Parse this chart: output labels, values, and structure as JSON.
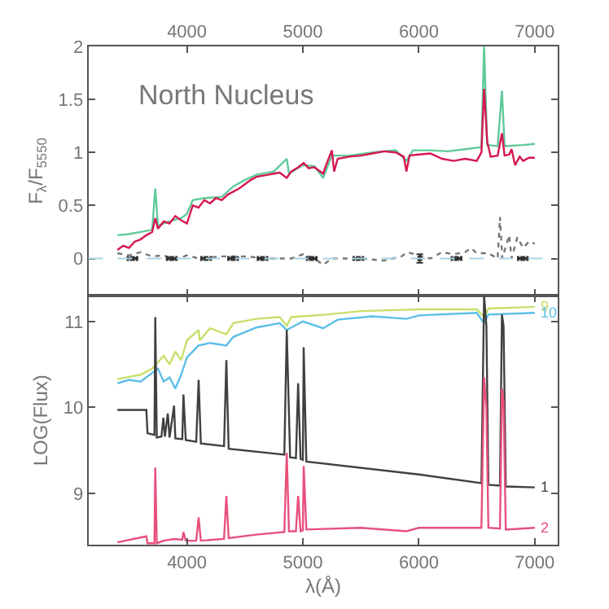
{
  "chart_data": [
    {
      "type": "line",
      "ylabel": "F$_{λ}$/F$_{5550}$",
      "annotations": [
        "North Nucleus"
      ],
      "xlim": [
        3150,
        7200
      ],
      "xticks": [
        4000,
        5000,
        6000,
        7000
      ],
      "ylim": [
        -0.35,
        2
      ],
      "yticks": [
        0,
        0.5,
        1,
        1.5,
        2
      ],
      "marker": "none",
      "ref_lines": [
        {
          "axis": "y",
          "value": 0,
          "color": "#a9d3e6",
          "line_style": "dashed"
        }
      ],
      "series": [
        {
          "color": "#5fc99a",
          "x": [
            3400,
            3500,
            3600,
            3700,
            3727,
            3750,
            3850,
            3950,
            4000,
            4050,
            4150,
            4300,
            4400,
            4500,
            4600,
            4750,
            4861,
            4880,
            5000,
            5100,
            5175,
            5250,
            5400,
            5600,
            5800,
            5893,
            5950,
            6100,
            6250,
            6400,
            6540,
            6563,
            6590,
            6680,
            6717,
            6740,
            6900,
            7000
          ],
          "values": [
            0.22,
            0.23,
            0.25,
            0.27,
            0.66,
            0.31,
            0.35,
            0.38,
            0.42,
            0.55,
            0.57,
            0.58,
            0.68,
            0.74,
            0.79,
            0.82,
            0.94,
            0.8,
            0.88,
            0.87,
            0.76,
            0.97,
            0.97,
            1.0,
            1.02,
            0.92,
            1.02,
            1.02,
            1.01,
            1.03,
            1.05,
            2.0,
            1.07,
            1.06,
            1.58,
            1.06,
            1.07,
            1.08
          ]
        },
        {
          "color": "#d6174f",
          "x": [
            3400,
            3450,
            3500,
            3550,
            3600,
            3650,
            3700,
            3727,
            3750,
            3800,
            3850,
            3900,
            3950,
            4000,
            4050,
            4100,
            4150,
            4200,
            4250,
            4300,
            4350,
            4400,
            4450,
            4500,
            4550,
            4600,
            4650,
            4700,
            4750,
            4800,
            4861,
            4900,
            4959,
            5007,
            5050,
            5100,
            5175,
            5200,
            5250,
            5270,
            5300,
            5400,
            5500,
            5600,
            5700,
            5800,
            5870,
            5893,
            5920,
            6000,
            6100,
            6200,
            6300,
            6400,
            6500,
            6540,
            6563,
            6590,
            6620,
            6680,
            6717,
            6740,
            6780,
            6800,
            6830,
            6870,
            6900,
            6950,
            7000
          ],
          "values": [
            0.08,
            0.12,
            0.1,
            0.16,
            0.18,
            0.22,
            0.25,
            0.38,
            0.28,
            0.35,
            0.33,
            0.4,
            0.36,
            0.33,
            0.5,
            0.48,
            0.55,
            0.52,
            0.57,
            0.55,
            0.6,
            0.63,
            0.66,
            0.7,
            0.74,
            0.77,
            0.78,
            0.79,
            0.8,
            0.81,
            0.76,
            0.82,
            0.86,
            0.9,
            0.85,
            0.86,
            0.8,
            0.88,
            1.02,
            0.82,
            0.94,
            0.96,
            0.97,
            0.99,
            1.01,
            1.0,
            0.96,
            0.82,
            0.97,
            0.98,
            0.99,
            0.94,
            0.92,
            0.94,
            0.92,
            1.0,
            1.6,
            1.1,
            0.96,
            0.97,
            1.18,
            0.97,
            0.98,
            1.03,
            0.88,
            0.96,
            0.92,
            0.95,
            0.95
          ]
        },
        {
          "color": "#777777",
          "line_style": "dotted",
          "x": [
            3400,
            3500,
            3600,
            3700,
            3800,
            3900,
            4000,
            4100,
            4300,
            4500,
            4700,
            4900,
            5000,
            5100,
            5175,
            5250,
            5500,
            5700,
            5850,
            5900,
            6000,
            6100,
            6200,
            6300,
            6400,
            6450,
            6500,
            6600,
            6680,
            6700,
            6720,
            6780,
            6800,
            6850,
            6900,
            6950,
            7000
          ],
          "values": [
            0.05,
            0.03,
            0.06,
            0.02,
            0.03,
            -0.01,
            0.03,
            0.0,
            0.02,
            0.02,
            0.0,
            0.0,
            0.04,
            0.0,
            -0.06,
            0.0,
            0.0,
            -0.02,
            0.02,
            0.06,
            0.03,
            0.0,
            0.06,
            0.04,
            0.06,
            0.1,
            0.05,
            0.05,
            0.0,
            0.39,
            0.0,
            0.22,
            0.0,
            0.2,
            0.1,
            0.16,
            0.14
          ]
        },
        {
          "type": "scatter",
          "marker": "square",
          "color": "#333333",
          "x": [
            3530,
            3869,
            4165,
            4398,
            4652,
            5076,
            5478,
            6008,
            6325,
            6897
          ],
          "values": [
            0,
            0,
            0,
            0,
            0,
            0,
            0,
            0,
            0,
            0
          ],
          "xerrors": [
            40,
            40,
            40,
            40,
            40,
            40,
            40,
            null,
            40,
            40
          ],
          "errors": [
            null,
            null,
            null,
            null,
            null,
            null,
            null,
            0.04,
            null,
            null
          ]
        }
      ]
    },
    {
      "type": "line",
      "xlabel": "λ(Å)",
      "ylabel": "LOG(Flux)",
      "xlim": [
        3150,
        7200
      ],
      "xticks": [
        4000,
        5000,
        6000,
        7000
      ],
      "ylim": [
        8.4,
        11.3
      ],
      "yticks": [
        9,
        10,
        11
      ],
      "legend": false,
      "marker": "none",
      "series": [
        {
          "name": "9",
          "color": "#c6e06a",
          "x": [
            3400,
            3600,
            3700,
            3800,
            3850,
            3900,
            3950,
            4000,
            4100,
            4110,
            4200,
            4340,
            4400,
            4600,
            4800,
            4861,
            4900,
            5200,
            5500,
            6000,
            6500,
            6563,
            6600,
            7000
          ],
          "values": [
            10.33,
            10.38,
            10.45,
            10.6,
            10.5,
            10.65,
            10.55,
            10.78,
            10.9,
            10.78,
            10.92,
            10.85,
            10.98,
            11.03,
            11.05,
            10.95,
            11.05,
            11.08,
            11.12,
            11.14,
            11.14,
            11.05,
            11.15,
            11.17
          ]
        },
        {
          "name": "10",
          "color": "#5bbfe8",
          "x": [
            3400,
            3500,
            3600,
            3700,
            3750,
            3800,
            3850,
            3900,
            3950,
            4000,
            4100,
            4200,
            4340,
            4400,
            4600,
            4800,
            4861,
            5000,
            5175,
            5300,
            5600,
            5893,
            6000,
            6500,
            6563,
            6600,
            7000
          ],
          "values": [
            10.28,
            10.32,
            10.3,
            10.4,
            10.45,
            10.3,
            10.35,
            10.22,
            10.38,
            10.58,
            10.72,
            10.75,
            10.72,
            10.82,
            10.93,
            10.98,
            10.9,
            11.0,
            10.92,
            11.02,
            11.06,
            11.03,
            11.07,
            11.1,
            10.98,
            11.08,
            11.1
          ]
        },
        {
          "name": "1",
          "color": "#404040",
          "x": [
            3400,
            3650,
            3660,
            3720,
            3727,
            3740,
            3780,
            3797,
            3810,
            3835,
            3850,
            3889,
            3900,
            3960,
            3970,
            3990,
            4080,
            4101,
            4120,
            4320,
            4340,
            4360,
            4840,
            4861,
            4890,
            4940,
            4959,
            4980,
            5000,
            5007,
            5030,
            6000,
            6540,
            6563,
            6583,
            6600,
            6700,
            6717,
            6731,
            6750,
            7000
          ],
          "values": [
            9.97,
            9.97,
            9.7,
            9.68,
            11.05,
            9.65,
            9.66,
            9.88,
            9.66,
            9.93,
            9.65,
            10.02,
            9.64,
            9.63,
            10.15,
            9.62,
            9.6,
            10.32,
            9.58,
            9.55,
            10.55,
            9.52,
            9.45,
            10.9,
            9.42,
            9.41,
            10.28,
            9.4,
            9.39,
            10.7,
            9.37,
            9.22,
            9.12,
            11.3,
            10.95,
            9.1,
            9.09,
            11.08,
            10.95,
            9.08,
            9.07
          ]
        },
        {
          "name": "2",
          "color": "#e8507c",
          "x": [
            3400,
            3650,
            3660,
            3720,
            3727,
            3740,
            3800,
            3889,
            3960,
            3970,
            3990,
            4080,
            4101,
            4120,
            4320,
            4340,
            4360,
            4600,
            4840,
            4861,
            4880,
            4940,
            4959,
            4980,
            5000,
            5007,
            5030,
            5500,
            5893,
            6000,
            6540,
            6563,
            6583,
            6600,
            6700,
            6717,
            6731,
            6750,
            7000
          ],
          "values": [
            8.43,
            8.5,
            8.42,
            8.42,
            9.3,
            8.42,
            8.45,
            8.47,
            8.46,
            8.55,
            8.45,
            8.45,
            8.72,
            8.45,
            8.47,
            8.97,
            8.48,
            8.52,
            8.55,
            9.47,
            8.56,
            8.56,
            8.97,
            8.56,
            8.57,
            9.32,
            8.58,
            8.6,
            8.56,
            8.6,
            8.6,
            10.35,
            10.0,
            8.6,
            8.59,
            10.22,
            10.08,
            8.58,
            8.6
          ]
        }
      ]
    }
  ]
}
